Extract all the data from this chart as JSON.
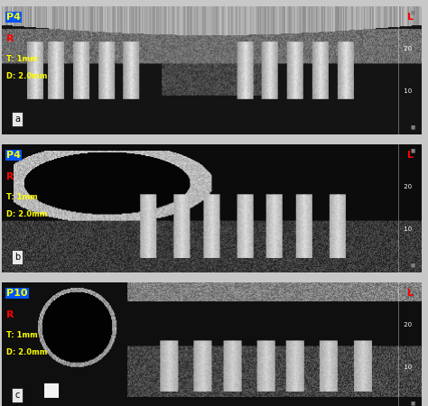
{
  "figure_bg": "#d0d0d0",
  "panels": [
    {
      "label": "a",
      "patient_id": "P4",
      "patient_id_bg": "#0055ff",
      "patient_id_color": "#ffff00",
      "R_color": "#ff0000",
      "L_color": "#ff0000",
      "info_color": "#ffff00",
      "T_val": "T: 1mm",
      "D_val": "D: 2.0mm",
      "has_ruler": true,
      "ruler_ticks": [
        10,
        20
      ],
      "panel_bg": "#1a1a1a"
    },
    {
      "label": "b",
      "patient_id": "P4",
      "patient_id_bg": "#0055ff",
      "patient_id_color": "#ffff00",
      "R_color": "#ff0000",
      "L_color": "#ff0000",
      "info_color": "#ffff00",
      "T_val": "T: 1mm",
      "D_val": "D: 2.0mm",
      "has_ruler": true,
      "ruler_ticks": [
        10,
        20
      ],
      "panel_bg": "#1a1a1a"
    },
    {
      "label": "c",
      "patient_id": "P10",
      "patient_id_bg": "#0055ff",
      "patient_id_color": "#ffff00",
      "R_color": "#ff0000",
      "L_color": "#ff0000",
      "info_color": "#ffff00",
      "T_val": "T: 1mm",
      "D_val": "D: 2.0mm",
      "has_ruler": true,
      "ruler_ticks": [
        10,
        20
      ],
      "panel_bg": "#1a1a1a"
    }
  ],
  "outer_bg": "#c8c8c8",
  "border_color": "#888888",
  "panel_border_color": "#555555"
}
